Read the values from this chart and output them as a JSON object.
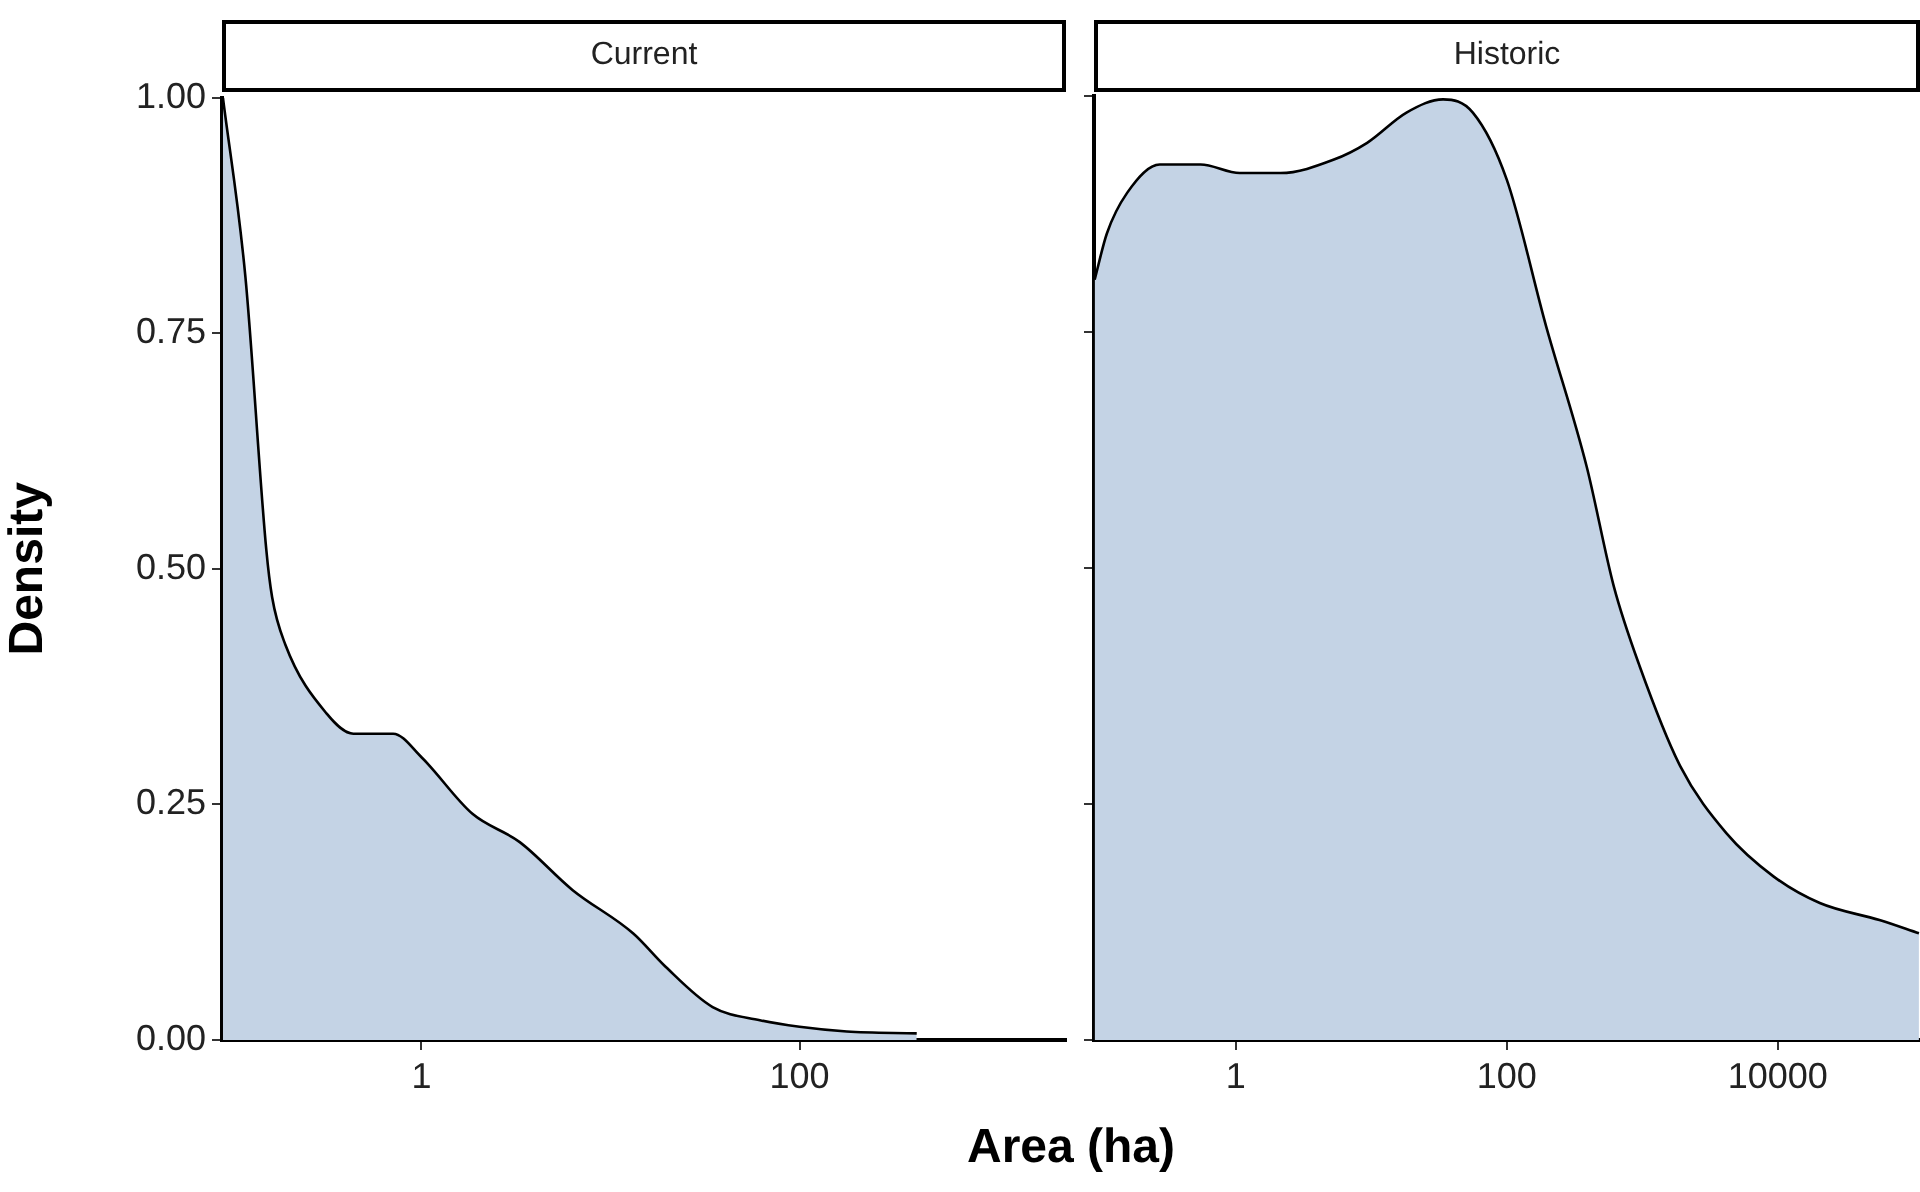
{
  "chart_data": [
    {
      "type": "area",
      "title": "Current",
      "ylabel": "Density",
      "xlabel": "Area (ha)",
      "log": "x",
      "grid": false,
      "legend": false,
      "xlim": [
        0.088,
        2570
      ],
      "xticks": [
        1,
        100
      ],
      "ylim": [
        0,
        1
      ],
      "yticks": [
        {
          "value": 0,
          "label": "0.00"
        },
        {
          "value": 0.25,
          "label": "0.25"
        },
        {
          "value": 0.5,
          "label": "0.50"
        },
        {
          "value": 0.75,
          "label": "0.75"
        },
        {
          "value": 1,
          "label": "1.00"
        }
      ],
      "series": [
        {
          "color": "#c4d3e5",
          "x": [
            0.089,
            0.117,
            0.151,
            0.162,
            0.19,
            0.316,
            0.436,
            0.708,
            1,
            1.86,
            3.31,
            6.31,
            13.2,
            19.5,
            34.7,
            61.7,
            100,
            178,
            417
          ],
          "values": [
            1.0,
            0.81,
            0.52,
            0.47,
            0.42,
            0.346,
            0.325,
            0.325,
            0.3,
            0.24,
            0.21,
            0.159,
            0.113,
            0.078,
            0.035,
            0.021,
            0.014,
            0.009,
            0.007
          ]
        }
      ]
    },
    {
      "type": "area",
      "title": "Historic",
      "log": "x",
      "grid": false,
      "legend": false,
      "tick_labels": "x",
      "xlim": [
        0.09,
        112000
      ],
      "xticks": [
        1,
        100,
        10000
      ],
      "ylim": [
        0,
        1
      ],
      "yticks": [
        0,
        0.25,
        0.5,
        0.75,
        1
      ],
      "series": [
        {
          "color": "#c4d3e5",
          "x": [
            0.091,
            0.112,
            0.158,
            0.275,
            0.55,
            1.07,
            2.14,
            5.25,
            9.33,
            18.2,
            33.9,
            56.2,
            100,
            195,
            389,
            617,
            955,
            1905,
            4169,
            9333,
            20417,
            56234,
            110000
          ],
          "values": [
            0.805,
            0.854,
            0.897,
            0.927,
            0.927,
            0.918,
            0.918,
            0.932,
            0.95,
            0.982,
            0.996,
            0.982,
            0.911,
            0.756,
            0.607,
            0.48,
            0.396,
            0.29,
            0.219,
            0.173,
            0.145,
            0.127,
            0.113
          ]
        }
      ]
    }
  ]
}
